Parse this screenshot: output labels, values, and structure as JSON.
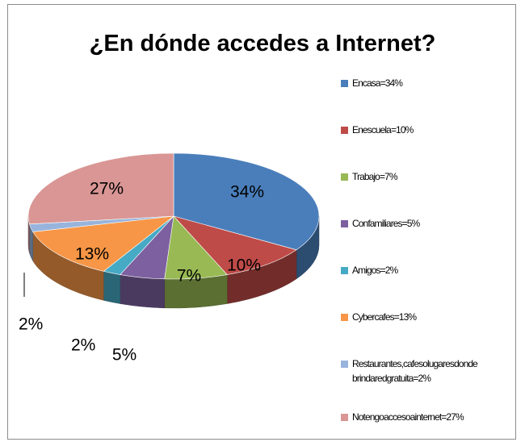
{
  "chart_data": {
    "type": "pie",
    "title": "¿En dónde accedes a Internet?",
    "three_d": true,
    "legend_position": "right",
    "slices": [
      {
        "legend": "Encasa=34%",
        "label": "34%",
        "value": 34,
        "color": "#4a7ebb"
      },
      {
        "legend": "Enescuela=10%",
        "label": "10%",
        "value": 10,
        "color": "#be4b48"
      },
      {
        "legend": "Trabajo=7%",
        "label": "7%",
        "value": 7,
        "color": "#98b954"
      },
      {
        "legend": "Confamiliares=5%",
        "label": "5%",
        "value": 5,
        "color": "#7d60a0"
      },
      {
        "legend": "Amigos=2%",
        "label": "2%",
        "value": 2,
        "color": "#46aac5"
      },
      {
        "legend": "Cybercafes=13%",
        "label": "13%",
        "value": 13,
        "color": "#f79646"
      },
      {
        "legend": "Restaurantes,cafesolugaresdonde brindaredgratuita=2%",
        "label": "2%",
        "value": 2,
        "color": "#98b4dc"
      },
      {
        "legend": "Notengoaccesoainternet=27%",
        "label": "27%",
        "value": 27,
        "color": "#d99694"
      }
    ]
  }
}
